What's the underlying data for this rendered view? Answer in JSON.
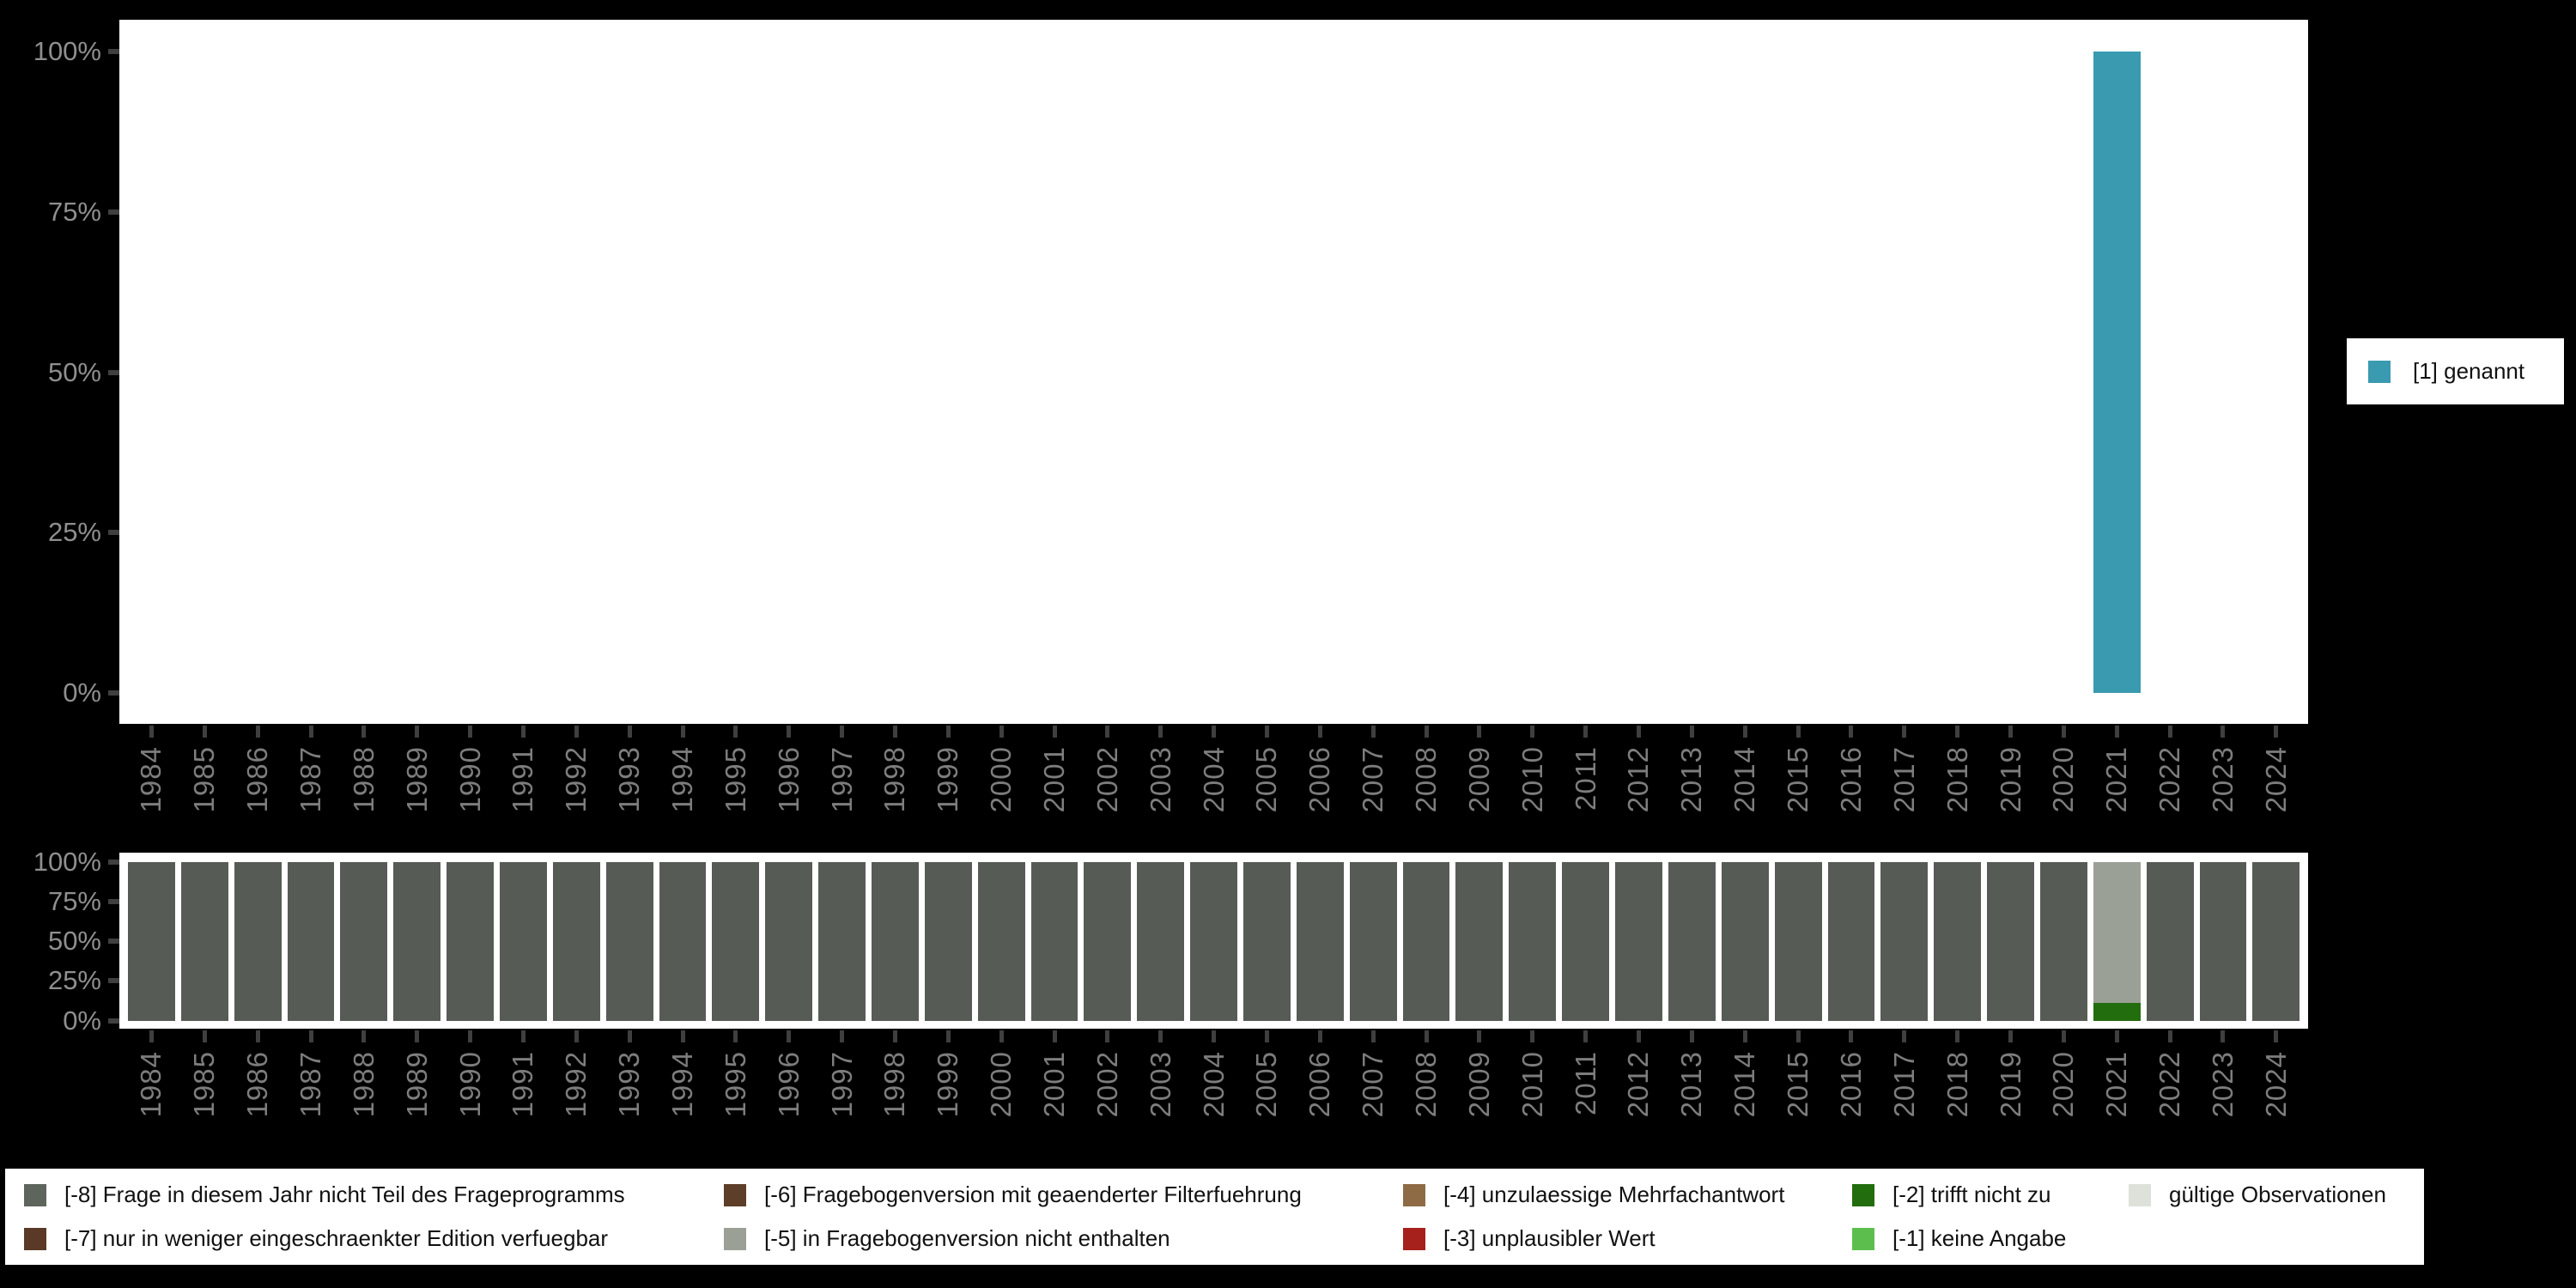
{
  "colors": {
    "background": "#000000",
    "plot_background": "#ffffff",
    "axis_label": "#8f8f8f",
    "x_label": "#7d7d7d",
    "tick": "#3f3f3f",
    "genannt_teal": "#3a9ab0",
    "bar_default": "#565c55"
  },
  "legend_top": {
    "label": "[1] genannt",
    "color": "#3a9ab0"
  },
  "legend_bottom": {
    "items": [
      {
        "label": "[-8] Frage in diesem Jahr nicht Teil des Frageprogramms",
        "color": "#5d655c"
      },
      {
        "label": "[-6] Fragebogenversion mit geaenderter Filterfuehrung",
        "color": "#5d3e29"
      },
      {
        "label": "[-4] unzulaessige Mehrfachantwort",
        "color": "#8e6b45"
      },
      {
        "label": "[-2] trifft nicht zu",
        "color": "#226d0e"
      },
      {
        "label": "gültige Observationen",
        "color": "#dde1da"
      },
      {
        "label": "[-7] nur in weniger eingeschraenkter Edition verfuegbar",
        "color": "#5a3a26"
      },
      {
        "label": "[-5] in Fragebogenversion nicht enthalten",
        "color": "#9aa096"
      },
      {
        "label": "[-3] unplausibler Wert",
        "color": "#a6201c"
      },
      {
        "label": "[-1] keine Angabe",
        "color": "#5cbf4d"
      }
    ]
  },
  "chart_data": [
    {
      "type": "bar",
      "title": "",
      "ylabel": "",
      "ylim": [
        0,
        100
      ],
      "grid": false,
      "legend_position": "right",
      "y_tick_labels": [
        "100%",
        "75%",
        "50%",
        "25%",
        "0%"
      ],
      "categories": [
        "1984",
        "1985",
        "1986",
        "1987",
        "1988",
        "1989",
        "1990",
        "1991",
        "1992",
        "1993",
        "1994",
        "1995",
        "1996",
        "1997",
        "1998",
        "1999",
        "2000",
        "2001",
        "2002",
        "2003",
        "2004",
        "2005",
        "2006",
        "2007",
        "2008",
        "2009",
        "2010",
        "2011",
        "2012",
        "2013",
        "2014",
        "2015",
        "2016",
        "2017",
        "2018",
        "2019",
        "2020",
        "2021",
        "2022",
        "2023",
        "2024"
      ],
      "series": [
        {
          "name": "[1] genannt",
          "color": "#3a9ab0",
          "values": [
            0,
            0,
            0,
            0,
            0,
            0,
            0,
            0,
            0,
            0,
            0,
            0,
            0,
            0,
            0,
            0,
            0,
            0,
            0,
            0,
            0,
            0,
            0,
            0,
            0,
            0,
            0,
            0,
            0,
            0,
            0,
            0,
            0,
            0,
            0,
            0,
            0,
            100,
            0,
            0,
            0
          ]
        }
      ]
    },
    {
      "type": "stacked_bar",
      "title": "",
      "ylabel": "",
      "ylim": [
        0,
        100
      ],
      "grid": false,
      "legend_position": "bottom",
      "y_tick_labels": [
        "100%",
        "75%",
        "50%",
        "25%",
        "0%"
      ],
      "categories": [
        "1984",
        "1985",
        "1986",
        "1987",
        "1988",
        "1989",
        "1990",
        "1991",
        "1992",
        "1993",
        "1994",
        "1995",
        "1996",
        "1997",
        "1998",
        "1999",
        "2000",
        "2001",
        "2002",
        "2003",
        "2004",
        "2005",
        "2006",
        "2007",
        "2008",
        "2009",
        "2010",
        "2011",
        "2012",
        "2013",
        "2014",
        "2015",
        "2016",
        "2017",
        "2018",
        "2019",
        "2020",
        "2021",
        "2022",
        "2023",
        "2024"
      ],
      "series": [
        {
          "name": "[-8] Frage in diesem Jahr nicht Teil des Frageprogramms",
          "color": "#565c55",
          "values": [
            100,
            100,
            100,
            100,
            100,
            100,
            100,
            100,
            100,
            100,
            100,
            100,
            100,
            100,
            100,
            100,
            100,
            100,
            100,
            100,
            100,
            100,
            100,
            100,
            100,
            100,
            100,
            100,
            100,
            100,
            100,
            100,
            100,
            100,
            100,
            100,
            100,
            0,
            100,
            100,
            100
          ]
        },
        {
          "name": "[-5] in Fragebogenversion nicht enthalten",
          "color": "#9aa096",
          "values": [
            0,
            0,
            0,
            0,
            0,
            0,
            0,
            0,
            0,
            0,
            0,
            0,
            0,
            0,
            0,
            0,
            0,
            0,
            0,
            0,
            0,
            0,
            0,
            0,
            0,
            0,
            0,
            0,
            0,
            0,
            0,
            0,
            0,
            0,
            0,
            0,
            0,
            88.6,
            0,
            0,
            0
          ]
        },
        {
          "name": "[-2] trifft nicht zu",
          "color": "#226d0e",
          "values": [
            0,
            0,
            0,
            0,
            0,
            0,
            0,
            0,
            0,
            0,
            0,
            0,
            0,
            0,
            0,
            0,
            0,
            0,
            0,
            0,
            0,
            0,
            0,
            0,
            0,
            0,
            0,
            0,
            0,
            0,
            0,
            0,
            0,
            0,
            0,
            0,
            0,
            11.4,
            0,
            0,
            0
          ]
        }
      ]
    }
  ]
}
